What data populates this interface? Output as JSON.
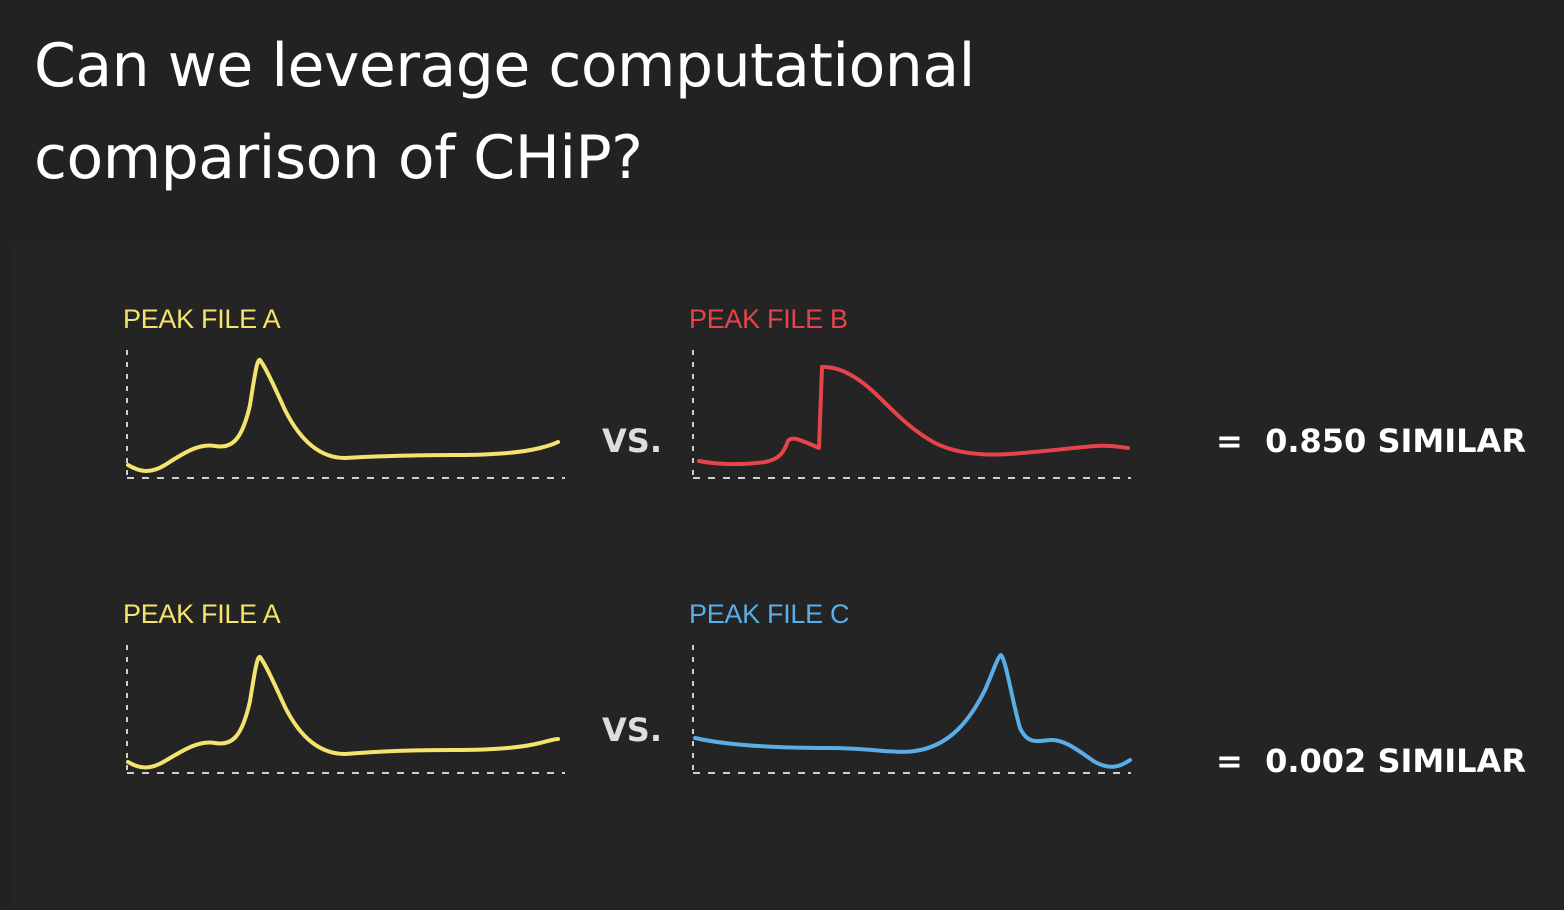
{
  "title": "Can we leverage computational comparison of CHiP?",
  "colors": {
    "background": "#222222",
    "file_a": "#f4e36c",
    "file_b": "#e6444a",
    "file_c": "#5aaee8",
    "axis": "#cfcfcf"
  },
  "comparisons": [
    {
      "left_label": "PEAK FILE A",
      "right_label": "PEAK FILE B",
      "vs": "VS.",
      "result": "=  0.850 SIMILAR"
    },
    {
      "left_label": "PEAK FILE A",
      "right_label": "PEAK FILE C",
      "vs": "VS.",
      "result": "=  0.002 SIMILAR"
    }
  ]
}
